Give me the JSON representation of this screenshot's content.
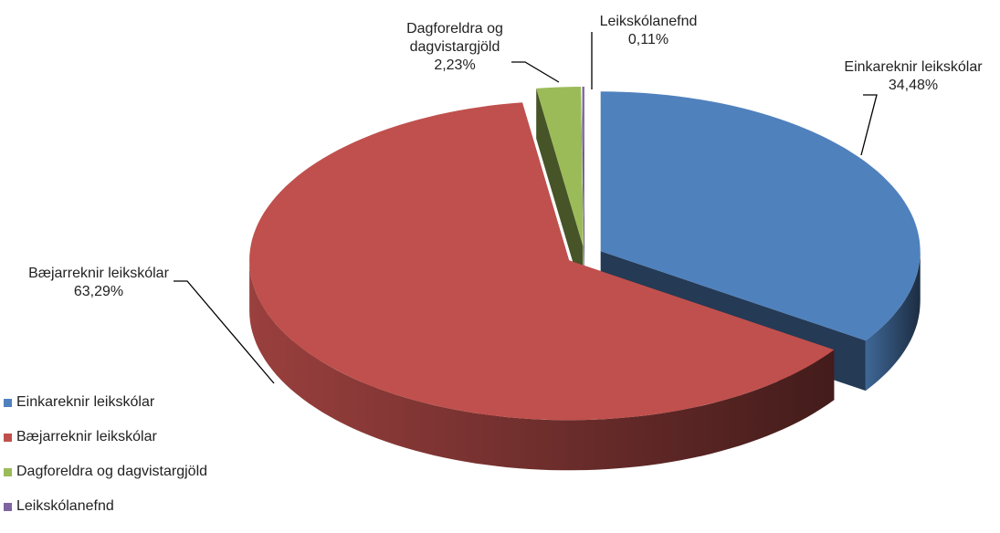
{
  "chart_data": {
    "type": "pie",
    "categories": [
      "Einkareknir leikskólar",
      "Bæjarreknir leikskólar",
      "Dagforeldra og dagvistargjöld",
      "Leikskólanefnd"
    ],
    "values": [
      34.48,
      63.29,
      2.23,
      0.11
    ],
    "value_labels": [
      "34,48%",
      "63,29%",
      "2,23%",
      "0,11%"
    ],
    "colors": [
      "#4f81bd",
      "#c0504d",
      "#9bbb59",
      "#8064a2"
    ],
    "legend": "bottom-left"
  }
}
